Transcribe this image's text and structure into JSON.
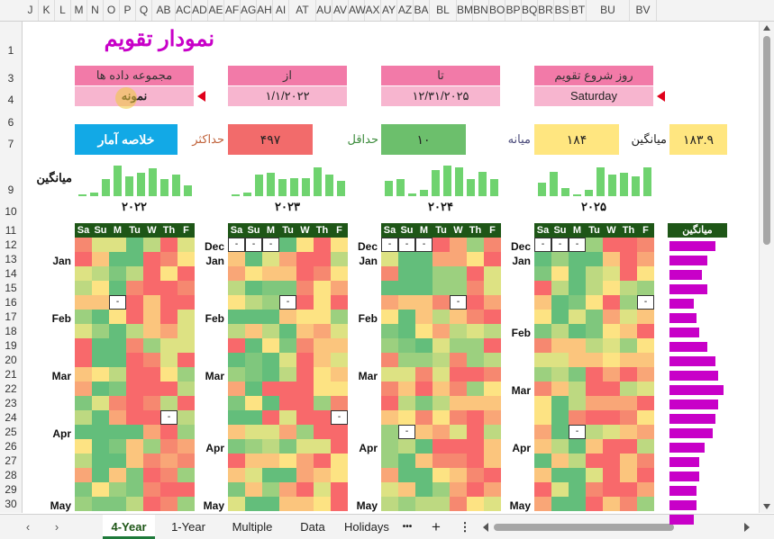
{
  "columns": [
    "J",
    "K",
    "L",
    "M",
    "N",
    "O",
    "P",
    "Q",
    "AB",
    "AC",
    "AD",
    "AE",
    "AF",
    "AG",
    "AH",
    "AI",
    "AT",
    "AU",
    "AV",
    "AW",
    "AX",
    "AY",
    "AZ",
    "BA",
    "BL",
    "BM",
    "BN",
    "BO",
    "BP",
    "BQ",
    "BR",
    "BS",
    "BT",
    "BU",
    "BV"
  ],
  "rows": [
    "1",
    "3",
    "4",
    "6",
    "7",
    "9",
    "10",
    "11",
    "12",
    "13",
    "14",
    "15",
    "16",
    "17",
    "18",
    "19",
    "20",
    "21",
    "22",
    "23",
    "24",
    "25",
    "26",
    "27",
    "28",
    "29",
    "30"
  ],
  "title": "نمودار تقویم",
  "controls": {
    "dataset": {
      "label": "مجموعه داده ها",
      "value": "نمونه"
    },
    "from": {
      "label": "از",
      "value": "۱/۱/۲۰۲۲"
    },
    "to": {
      "label": "تا",
      "value": "۱۲/۳۱/۲۰۲۵"
    },
    "week_start": {
      "label": "روز شروع تقویم",
      "value": "Saturday"
    }
  },
  "summary_button": "خلاصه آمار",
  "stats": {
    "max_label": "حداکثر",
    "max_value": "۴۹۷",
    "min_label": "حداقل",
    "min_value": "۱۰",
    "median_label": "میانه",
    "median_value": "۱۸۴",
    "mean_label": "میانگین",
    "mean_value": "۱۸۳.۹"
  },
  "avg_label": "میانگین",
  "avg_header": "میانگین",
  "day_headers": [
    "Sa",
    "Su",
    "M",
    "Tu",
    "W",
    "Th",
    "F"
  ],
  "colors": {
    "title": "#c800c8",
    "header_pink": "#f27aa8",
    "value_pink": "#f7b5cf",
    "button_blue": "#12a9e6",
    "max_red": "#f26b6b",
    "min_green": "#6cbf6c",
    "stat_yellow": "#ffe680",
    "day_header_green": "#1e5617",
    "bar_green": "#6fd36f",
    "bar_magenta": "#c800c8"
  },
  "years": [
    {
      "label": "۲۰۲۲",
      "months": [
        {
          "name": "Jan",
          "row": 1
        },
        {
          "name": "Feb",
          "row": 5
        },
        {
          "name": "Mar",
          "row": 9
        },
        {
          "name": "Apr",
          "row": 13
        },
        {
          "name": "May",
          "row": 18
        }
      ],
      "bars": [
        0.05,
        0.12,
        0.55,
        1.0,
        0.65,
        0.75,
        0.9,
        0.55,
        0.7,
        0.35
      ]
    },
    {
      "label": "۲۰۲۳",
      "months": [
        {
          "name": "Dec",
          "row": 0
        },
        {
          "name": "Jan",
          "row": 1
        },
        {
          "name": "Feb",
          "row": 5
        },
        {
          "name": "Mar",
          "row": 9
        },
        {
          "name": "Apr",
          "row": 14
        },
        {
          "name": "May",
          "row": 18
        }
      ],
      "bars": [
        0.05,
        0.12,
        0.7,
        0.75,
        0.55,
        0.6,
        0.6,
        0.95,
        0.7,
        0.5
      ]
    },
    {
      "label": "۲۰۲۴",
      "months": [
        {
          "name": "Dec",
          "row": 0
        },
        {
          "name": "Jan",
          "row": 1
        },
        {
          "name": "Feb",
          "row": 5
        },
        {
          "name": "Mar",
          "row": 9
        },
        {
          "name": "Apr",
          "row": 14
        },
        {
          "name": "May",
          "row": 18
        }
      ],
      "bars": [
        0.5,
        0.55,
        0.1,
        0.2,
        0.85,
        1.0,
        0.95,
        0.55,
        0.8,
        0.55
      ]
    },
    {
      "label": "۲۰۲۵",
      "months": [
        {
          "name": "Dec",
          "row": 0
        },
        {
          "name": "Jan",
          "row": 1
        },
        {
          "name": "Feb",
          "row": 6
        },
        {
          "name": "Mar",
          "row": 10
        },
        {
          "name": "Apr",
          "row": 14
        },
        {
          "name": "May",
          "row": 18
        }
      ],
      "bars": [
        0.45,
        0.8,
        0.25,
        0.05,
        0.2,
        0.95,
        0.7,
        0.75,
        0.65,
        0.95
      ]
    }
  ],
  "avg_bars": [
    0.85,
    0.7,
    0.6,
    0.7,
    0.45,
    0.5,
    0.55,
    0.7,
    0.85,
    0.9,
    1.0,
    0.9,
    0.85,
    0.8,
    0.65,
    0.55,
    0.55,
    0.5,
    0.5,
    0.45
  ],
  "tabs": [
    "4-Year",
    "1-Year",
    "Multiple",
    "Data",
    "Holidays"
  ],
  "active_tab": "4-Year",
  "tab_more": "•••",
  "tab_add": "+",
  "tab_menu": "⋮"
}
